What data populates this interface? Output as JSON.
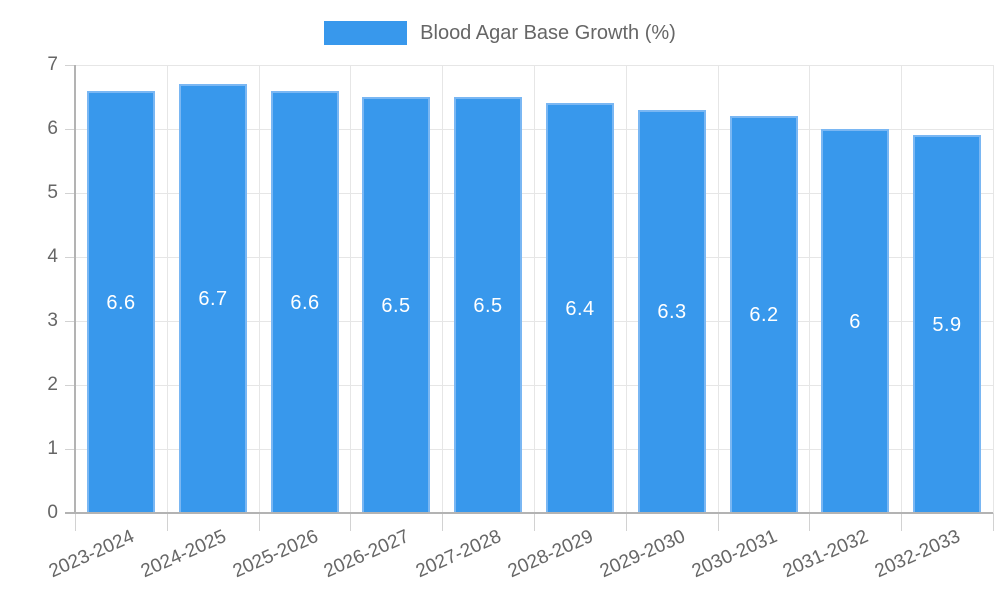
{
  "legend": {
    "label": "Blood Agar Base Growth (%)"
  },
  "chart_data": {
    "type": "bar",
    "title": "Blood Agar Base Growth (%)",
    "categories": [
      "2023-2024",
      "2024-2025",
      "2025-2026",
      "2026-2027",
      "2027-2028",
      "2028-2029",
      "2029-2030",
      "2030-2031",
      "2031-2032",
      "2032-2033"
    ],
    "values": [
      6.6,
      6.7,
      6.6,
      6.5,
      6.5,
      6.4,
      6.3,
      6.2,
      6,
      5.9
    ],
    "bar_labels": [
      "6.6",
      "6.7",
      "6.6",
      "6.5",
      "6.5",
      "6.4",
      "6.3",
      "6.2",
      "6",
      "5.9"
    ],
    "xlabel": "",
    "ylabel": "",
    "ylim": [
      0,
      7
    ],
    "yticks": [
      0,
      1,
      2,
      3,
      4,
      5,
      6,
      7
    ],
    "grid": true,
    "legend_position": "top",
    "colors": {
      "bar_fill": "#3898ec",
      "bar_border": "#7ab7f3",
      "grid_line": "#e6e6e6",
      "axis_line": "#b3b3b3",
      "tick_mark": "#d2d2d2",
      "axis_label": "#666666",
      "value_label": "#ffffff"
    }
  }
}
